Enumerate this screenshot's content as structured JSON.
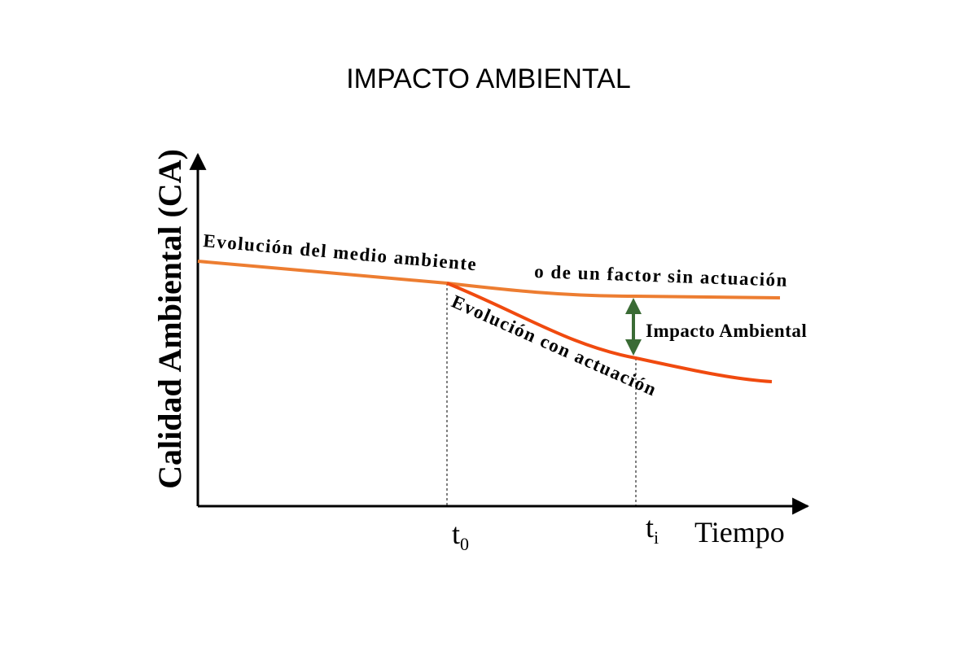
{
  "title": "IMPACTO AMBIENTAL",
  "y_axis_label": "Calidad Ambiental (CA)",
  "x_axis_label": "Tiempo",
  "tick_t0": {
    "base": "t",
    "sub": "0"
  },
  "tick_ti": {
    "base": "t",
    "sub": "i"
  },
  "curve_without_action_label_part1": "Evolución del medio ambiente",
  "curve_without_action_label_part2": "o de un factor sin actuación",
  "curve_with_action_label": "Evolución con actuación",
  "impact_label": "Impacto Ambiental",
  "colors": {
    "without_action": "#ED7D31",
    "with_action": "#F04A0F",
    "impact_arrow": "#3A6B35",
    "axes": "#000000"
  }
}
